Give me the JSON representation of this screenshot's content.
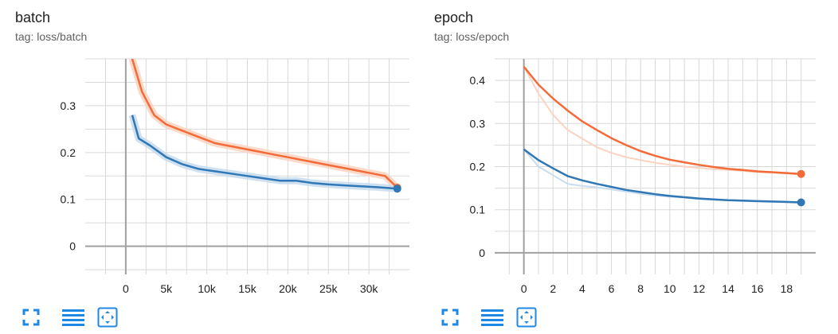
{
  "colors": {
    "orange": "#f26b38",
    "orange_raw": "#fbd3c0",
    "blue": "#2f77b5",
    "blue_raw": "#c7dcee",
    "grid": "#d8d8d8",
    "axis": "#a0a0a0",
    "toolbar_icon": "#1e88e5"
  },
  "toolbar": {
    "icons": [
      "fullscreen-icon",
      "data-table-icon",
      "fit-domain-icon"
    ]
  },
  "charts": {
    "batch": {
      "title": "batch",
      "tag": "tag: loss/batch"
    },
    "epoch": {
      "title": "epoch",
      "tag": "tag: loss/epoch"
    }
  },
  "chart_data": [
    {
      "type": "line",
      "title": "batch",
      "subtitle": "tag: loss/batch",
      "xlabel": "",
      "ylabel": "",
      "xlim": [
        -5000,
        35000
      ],
      "ylim": [
        -0.06,
        0.4
      ],
      "x_ticks": [
        0,
        5000,
        10000,
        15000,
        20000,
        25000,
        30000
      ],
      "x_tick_labels": [
        "0",
        "5k",
        "10k",
        "15k",
        "20k",
        "25k",
        "30k"
      ],
      "y_ticks": [
        0,
        0.1,
        0.2,
        0.3
      ],
      "y_tick_labels": [
        "0",
        "0.1",
        "0.2",
        "0.3"
      ],
      "grid": true,
      "series": [
        {
          "color": "#f26b38",
          "raw_color": "#fbd3c0",
          "x": [
            800,
            2000,
            3500,
            5000,
            6500,
            8000,
            9500,
            11000,
            12500,
            14000,
            15500,
            17000,
            18500,
            20000,
            21500,
            23000,
            24500,
            26000,
            27500,
            29000,
            30500,
            32000,
            33500
          ],
          "y": [
            0.4,
            0.33,
            0.28,
            0.26,
            0.25,
            0.24,
            0.23,
            0.22,
            0.215,
            0.21,
            0.205,
            0.2,
            0.195,
            0.19,
            0.185,
            0.18,
            0.175,
            0.17,
            0.165,
            0.16,
            0.155,
            0.15,
            0.125
          ]
        },
        {
          "color": "#2f77b5",
          "raw_color": "#c7dcee",
          "x": [
            800,
            1600,
            3000,
            5000,
            7000,
            9000,
            11000,
            13000,
            15000,
            17000,
            19000,
            21000,
            23000,
            25000,
            27000,
            29000,
            31000,
            33500
          ],
          "y": [
            0.28,
            0.23,
            0.215,
            0.19,
            0.175,
            0.165,
            0.16,
            0.155,
            0.15,
            0.145,
            0.14,
            0.14,
            0.135,
            0.132,
            0.13,
            0.128,
            0.126,
            0.123
          ]
        }
      ]
    },
    {
      "type": "line",
      "title": "epoch",
      "subtitle": "tag: loss/epoch",
      "xlabel": "",
      "ylabel": "",
      "xlim": [
        -2,
        20
      ],
      "ylim": [
        -0.05,
        0.45
      ],
      "x_ticks": [
        0,
        2,
        4,
        6,
        8,
        10,
        12,
        14,
        16,
        18
      ],
      "x_tick_labels": [
        "0",
        "2",
        "4",
        "6",
        "8",
        "10",
        "12",
        "14",
        "16",
        "18"
      ],
      "y_ticks": [
        0,
        0.1,
        0.2,
        0.3,
        0.4
      ],
      "y_tick_labels": [
        "0",
        "0.1",
        "0.2",
        "0.3",
        "0.4"
      ],
      "grid": true,
      "series": [
        {
          "color": "#f26b38",
          "raw_color": "#fbd3c0",
          "x": [
            0,
            1,
            2,
            3,
            4,
            5,
            6,
            7,
            8,
            9,
            10,
            11,
            12,
            13,
            14,
            15,
            16,
            17,
            18,
            19
          ],
          "y": [
            0.432,
            0.39,
            0.358,
            0.33,
            0.305,
            0.285,
            0.266,
            0.25,
            0.236,
            0.225,
            0.216,
            0.21,
            0.204,
            0.199,
            0.195,
            0.192,
            0.189,
            0.187,
            0.185,
            0.183
          ],
          "raw_y": [
            0.432,
            0.37,
            0.32,
            0.285,
            0.265,
            0.245,
            0.232,
            0.222,
            0.215,
            0.209,
            0.204,
            0.2,
            0.197,
            0.194,
            0.192,
            0.19,
            0.187,
            0.186,
            0.184,
            0.182
          ]
        },
        {
          "color": "#2f77b5",
          "raw_color": "#c7dcee",
          "x": [
            0,
            1,
            2,
            3,
            4,
            5,
            6,
            7,
            8,
            9,
            10,
            11,
            12,
            13,
            14,
            15,
            16,
            17,
            18,
            19
          ],
          "y": [
            0.24,
            0.215,
            0.196,
            0.178,
            0.168,
            0.16,
            0.153,
            0.146,
            0.141,
            0.136,
            0.132,
            0.129,
            0.126,
            0.124,
            0.122,
            0.121,
            0.12,
            0.119,
            0.118,
            0.117
          ],
          "raw_y": [
            0.24,
            0.2,
            0.18,
            0.16,
            0.155,
            0.152,
            0.147,
            0.142,
            0.137,
            0.133,
            0.13,
            0.128,
            0.125,
            0.123,
            0.122,
            0.12,
            0.119,
            0.118,
            0.117,
            0.116
          ]
        }
      ]
    }
  ]
}
